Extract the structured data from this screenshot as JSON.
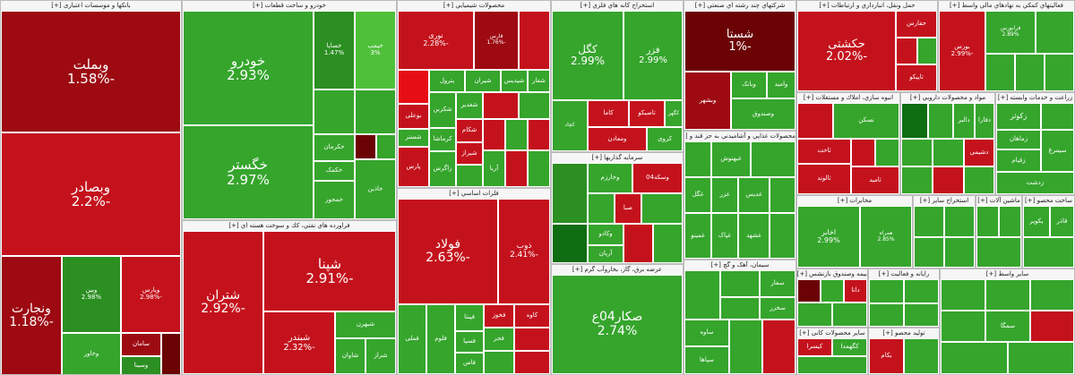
{
  "sectors": [
    {
      "title": "بانکها و موسسات اعتباری [+]",
      "tiles": [
        {
          "name": "وبملت",
          "pct": "-1.58%",
          "c": "r2"
        },
        {
          "name": "وبصادر",
          "pct": "-2.2%",
          "c": "r1"
        },
        {
          "name": "ونجارت",
          "pct": "-1.18%",
          "c": "r2"
        },
        {
          "name": "وبین",
          "pct": "2.98%",
          "c": "g2"
        },
        {
          "name": "وپارس",
          "pct": "-2.98%",
          "c": "r1"
        },
        {
          "name": "سامان",
          "pct": "",
          "c": "r2"
        },
        {
          "name": "وسینا",
          "pct": "",
          "c": "g2"
        },
        {
          "name": "وخاور",
          "pct": "",
          "c": "g1"
        }
      ]
    },
    {
      "title": "خودرو و ساخت قطعات [+]",
      "tiles": [
        {
          "name": "خودرو",
          "pct": "2.93%",
          "c": "g1"
        },
        {
          "name": "خگستر",
          "pct": "2.97%",
          "c": "g1"
        },
        {
          "name": "خساپا",
          "pct": "1.47%",
          "c": "g2"
        },
        {
          "name": "خپمپ",
          "pct": "3%",
          "c": "g3"
        },
        {
          "name": "خکرمان",
          "pct": "",
          "c": "g1"
        },
        {
          "name": "خکمک",
          "pct": "",
          "c": "g1"
        },
        {
          "name": "خمحور",
          "pct": "",
          "c": "g1"
        },
        {
          "name": "خاذین",
          "pct": "",
          "c": "g1"
        }
      ]
    },
    {
      "title": "فراورده هاي نفتي، كك و سوخت هسته اي [+]",
      "tiles": [
        {
          "name": "شتران",
          "pct": "-2.92%",
          "c": "r1"
        },
        {
          "name": "شپنا",
          "pct": "-2.91%",
          "c": "r1"
        },
        {
          "name": "شبندر",
          "pct": "-2.32%",
          "c": "r1"
        },
        {
          "name": "شبهرن",
          "pct": "",
          "c": "g1"
        },
        {
          "name": "شاوان",
          "pct": "",
          "c": "g1"
        },
        {
          "name": "شسپا",
          "pct": "",
          "c": "g1"
        },
        {
          "name": "شراز",
          "pct": "",
          "c": "g1"
        }
      ]
    },
    {
      "title": "محصولات شيميايي [+]",
      "tiles": [
        {
          "name": "نوری",
          "pct": "-2.28%",
          "c": "r1"
        },
        {
          "name": "فارس",
          "pct": "-1.76%",
          "c": "r1"
        },
        {
          "name": "شپدیس",
          "pct": "",
          "c": "g1"
        },
        {
          "name": "شفار",
          "pct": "",
          "c": "g1"
        },
        {
          "name": "پترول",
          "pct": "",
          "c": "g1"
        },
        {
          "name": "شیران",
          "pct": "",
          "c": "g1"
        },
        {
          "name": "بوعلی",
          "pct": "",
          "c": "r1"
        },
        {
          "name": "شکربن",
          "pct": "",
          "c": "g1"
        },
        {
          "name": "کرماشا",
          "pct": "",
          "c": "g1"
        },
        {
          "name": "زاگرس",
          "pct": "",
          "c": "g1"
        },
        {
          "name": "پارس",
          "pct": "",
          "c": "r1"
        },
        {
          "name": "شستر",
          "pct": "",
          "c": "g1"
        },
        {
          "name": "شیراز",
          "pct": "",
          "c": "r1"
        },
        {
          "name": "شغدیر",
          "pct": "",
          "c": "g1"
        },
        {
          "name": "شکام",
          "pct": "",
          "c": "r1"
        },
        {
          "name": "آریا",
          "pct": "",
          "c": "g1"
        }
      ]
    },
    {
      "title": "فلزات اساسي [+]",
      "tiles": [
        {
          "name": "فولاد",
          "pct": "-2.63%",
          "c": "r1"
        },
        {
          "name": "ذوب",
          "pct": "-2.41%",
          "c": "r1"
        },
        {
          "name": "فملی",
          "pct": "",
          "c": "g1"
        },
        {
          "name": "فخوز",
          "pct": "",
          "c": "r1"
        },
        {
          "name": "فلوم",
          "pct": "",
          "c": "g1"
        },
        {
          "name": "فپنتا",
          "pct": "",
          "c": "g1"
        },
        {
          "name": "کاوه",
          "pct": "",
          "c": "r1"
        },
        {
          "name": "فجر",
          "pct": "",
          "c": "g1"
        },
        {
          "name": "فسپا",
          "pct": "",
          "c": "g1"
        },
        {
          "name": "فاس",
          "pct": "",
          "c": "g1"
        }
      ]
    },
    {
      "title": "استخراج كانه هاي فلزي [+]",
      "tiles": [
        {
          "name": "کگل",
          "pct": "2.99%",
          "c": "g1"
        },
        {
          "name": "فزر",
          "pct": "2.99%",
          "c": "g1"
        },
        {
          "name": "کچاد",
          "pct": "",
          "c": "g1"
        },
        {
          "name": "کاما",
          "pct": "",
          "c": "r1"
        },
        {
          "name": "تاصیکو",
          "pct": "",
          "c": "r1"
        },
        {
          "name": "کگهر",
          "pct": "",
          "c": "g1"
        },
        {
          "name": "کروی",
          "pct": "",
          "c": "g1"
        },
        {
          "name": "ومعادن",
          "pct": "",
          "c": "r1"
        }
      ]
    },
    {
      "title": "سرمايه گذاريها [+]",
      "tiles": [
        {
          "name": "وخارزم",
          "pct": "",
          "c": "g1"
        },
        {
          "name": "وسکه04",
          "pct": "",
          "c": "r1"
        },
        {
          "name": "صبا",
          "pct": "",
          "c": "r1"
        },
        {
          "name": "وکادو",
          "pct": "",
          "c": "g1"
        },
        {
          "name": "آریان",
          "pct": "",
          "c": "g1"
        }
      ]
    },
    {
      "title": "عرضه برق، گاز، بخاروآب گرم [+]",
      "tiles": [
        {
          "name": "صکار04ع",
          "pct": "2.74%",
          "c": "g1"
        }
      ]
    },
    {
      "title": "شرکتهاي چند رشته اي صنعتي [+]",
      "tiles": [
        {
          "name": "شستا",
          "pct": "-1%",
          "c": "r2"
        },
        {
          "name": "وبانک",
          "pct": "",
          "c": "g1"
        },
        {
          "name": "وامید",
          "pct": "",
          "c": "g1"
        },
        {
          "name": "وصندوق",
          "pct": "",
          "c": "g1"
        },
        {
          "name": "وبشهر",
          "pct": "",
          "c": "r1"
        }
      ]
    },
    {
      "title": "محصولات غذايي و آشاميدني به جز قند و [+]",
      "tiles": [
        {
          "name": "غزر",
          "pct": "",
          "c": "g1"
        },
        {
          "name": "غبهنوش",
          "pct": "",
          "c": "g1"
        },
        {
          "name": "غگل",
          "pct": "",
          "c": "g1"
        },
        {
          "name": "غدیس",
          "pct": "",
          "c": "g1"
        },
        {
          "name": "غمینو",
          "pct": "",
          "c": "g1"
        },
        {
          "name": "غپاک",
          "pct": "",
          "c": "g1"
        },
        {
          "name": "غشهد",
          "pct": "",
          "c": "g1"
        }
      ]
    },
    {
      "title": "سیمان، آهک و گچ [+]",
      "tiles": [
        {
          "name": "ساوه",
          "pct": "",
          "c": "g1"
        },
        {
          "name": "سپاها",
          "pct": "",
          "c": "g1"
        },
        {
          "name": "سفار",
          "pct": "",
          "c": "g1"
        },
        {
          "name": "سخزر",
          "pct": "",
          "c": "g1"
        }
      ]
    },
    {
      "title": "حمل ونقل، انبارداري و ارتباطات [+]",
      "tiles": [
        {
          "name": "حکشتی",
          "pct": "-2.02%",
          "c": "r1"
        },
        {
          "name": "حفارس",
          "pct": "",
          "c": "r1"
        },
        {
          "name": "تاپیکو",
          "pct": "",
          "c": "r1"
        }
      ]
    },
    {
      "title": "فعالیتهاي كمكي به نهادهاي مالي واسط [+]",
      "tiles": [
        {
          "name": "بورس",
          "pct": "-2.99%",
          "c": "r1"
        },
        {
          "name": "فرابورس",
          "pct": "2.89%",
          "c": "g1"
        }
      ]
    },
    {
      "title": "انبوه سازي، املاك و مستغلات [+]",
      "tiles": [
        {
          "name": "ثاخت",
          "pct": "",
          "c": "r1"
        },
        {
          "name": "ثالوند",
          "pct": "",
          "c": "r1"
        },
        {
          "name": "تسکن",
          "pct": "",
          "c": "g1"
        },
        {
          "name": "ثامید",
          "pct": "",
          "c": "r1"
        }
      ]
    },
    {
      "title": "مواد و محصولات دارويي [+]",
      "tiles": [
        {
          "name": "دالبر",
          "pct": "",
          "c": "g1"
        },
        {
          "name": "دشیمی",
          "pct": "",
          "c": "g1"
        },
        {
          "name": "دفارا",
          "pct": "",
          "c": "g1"
        }
      ]
    },
    {
      "title": "زراعت و خدمات وابسته [+]",
      "tiles": [
        {
          "name": "زکوثر",
          "pct": "",
          "c": "g1"
        },
        {
          "name": "زماهان",
          "pct": "",
          "c": "g1"
        },
        {
          "name": "زقیام",
          "pct": "",
          "c": "g1"
        },
        {
          "name": "زدشت",
          "pct": "",
          "c": "g1"
        },
        {
          "name": "سیمرغ",
          "pct": "",
          "c": "g1"
        }
      ]
    },
    {
      "title": "مخابرات [+]",
      "tiles": [
        {
          "name": "اخابر",
          "pct": "2.99%",
          "c": "g1"
        },
        {
          "name": "همراه",
          "pct": "2.85%",
          "c": "g1"
        }
      ]
    },
    {
      "title": "استخراج سایر [+]",
      "tiles": []
    },
    {
      "title": "ماشین آلات [+]",
      "tiles": []
    },
    {
      "title": "ساخت محصو [+]",
      "tiles": [
        {
          "name": "پکویر",
          "pct": "",
          "c": "g1"
        },
        {
          "name": "قاذر",
          "pct": "",
          "c": "g1"
        }
      ]
    },
    {
      "title": "بیمه وصندوق بازنشس [+]",
      "tiles": [
        {
          "name": "دانا",
          "pct": "",
          "c": "r1"
        }
      ]
    },
    {
      "title": "رایانه و فعالیت [+]",
      "tiles": []
    },
    {
      "title": "سایر محصولات کانی [+]",
      "tiles": [
        {
          "name": "کیسرا",
          "pct": "",
          "c": "r1"
        },
        {
          "name": "کگهمدا",
          "pct": "",
          "c": "g1"
        }
      ]
    },
    {
      "title": "تولید محصو [+]",
      "tiles": [
        {
          "name": "بکام",
          "pct": "",
          "c": "r1"
        }
      ]
    },
    {
      "title": "سایر واسط [+]",
      "tiles": [
        {
          "name": "سمگا",
          "pct": "",
          "c": "g1"
        }
      ]
    }
  ]
}
